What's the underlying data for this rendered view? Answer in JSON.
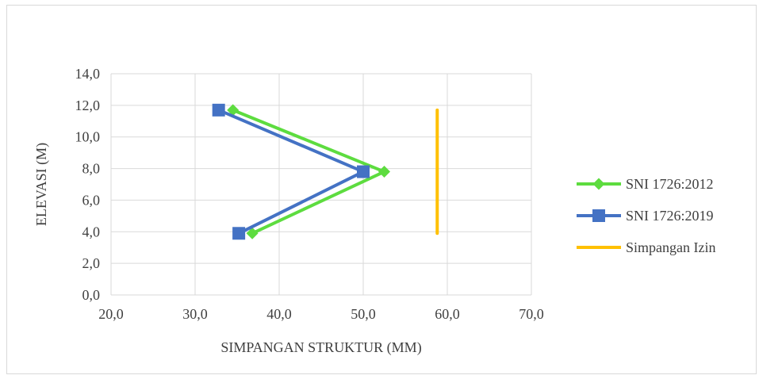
{
  "chart_data": {
    "type": "line",
    "title": "",
    "xlabel": "SIMPANGAN STRUKTUR (MM)",
    "ylabel": "ELEVASI (M)",
    "xlim": [
      20,
      70
    ],
    "ylim": [
      0,
      14
    ],
    "x_ticks": [
      "20,0",
      "30,0",
      "40,0",
      "50,0",
      "60,0",
      "70,0"
    ],
    "y_ticks": [
      "0,0",
      "2,0",
      "4,0",
      "6,0",
      "8,0",
      "10,0",
      "12,0",
      "14,0"
    ],
    "grid": true,
    "legend_position": "right",
    "series": [
      {
        "name": "SNI 1726:2012",
        "color": "#5ddc3f",
        "marker": "diamond",
        "points": [
          [
            34.5,
            11.7
          ],
          [
            52.5,
            7.8
          ],
          [
            36.8,
            3.9
          ]
        ]
      },
      {
        "name": "SNI 1726:2019",
        "color": "#4472c4",
        "marker": "square",
        "points": [
          [
            32.8,
            11.7
          ],
          [
            50.0,
            7.8
          ],
          [
            35.2,
            3.9
          ]
        ]
      },
      {
        "name": "Simpangan Izin",
        "color": "#ffc000",
        "marker": "none",
        "points": [
          [
            58.8,
            11.7
          ],
          [
            58.8,
            7.8
          ],
          [
            58.8,
            3.9
          ]
        ]
      }
    ]
  }
}
